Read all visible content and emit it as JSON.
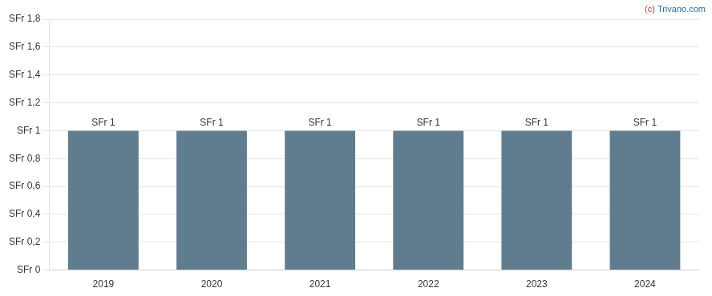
{
  "chart_data": {
    "type": "bar",
    "categories": [
      "2019",
      "2020",
      "2021",
      "2022",
      "2023",
      "2024"
    ],
    "values": [
      1.0,
      1.0,
      1.0,
      1.0,
      1.0,
      1.0
    ],
    "value_labels": [
      "SFr 1",
      "SFr 1",
      "SFr 1",
      "SFr 1",
      "SFr 1",
      "SFr 1"
    ],
    "data_labels": true,
    "color": "#5f7d8e",
    "ylim": [
      0,
      1.8
    ],
    "yticks": [
      {
        "value": 0,
        "label": "SFr 0"
      },
      {
        "value": 0.2,
        "label": "SFr 0,2"
      },
      {
        "value": 0.4,
        "label": "SFr 0,4"
      },
      {
        "value": 0.6,
        "label": "SFr 0,6"
      },
      {
        "value": 0.8,
        "label": "SFr 0,8"
      },
      {
        "value": 1.0,
        "label": "SFr 1"
      },
      {
        "value": 1.2,
        "label": "SFr 1,2"
      },
      {
        "value": 1.4,
        "label": "SFr 1,4"
      },
      {
        "value": 1.6,
        "label": "SFr 1,6"
      },
      {
        "value": 1.8,
        "label": "SFr 1,8"
      }
    ],
    "grid": "y",
    "annotations": [
      {
        "text": "(c) ",
        "color": "#c0392b"
      },
      {
        "text": "Trivano.com",
        "color": "#2471a3"
      }
    ]
  }
}
